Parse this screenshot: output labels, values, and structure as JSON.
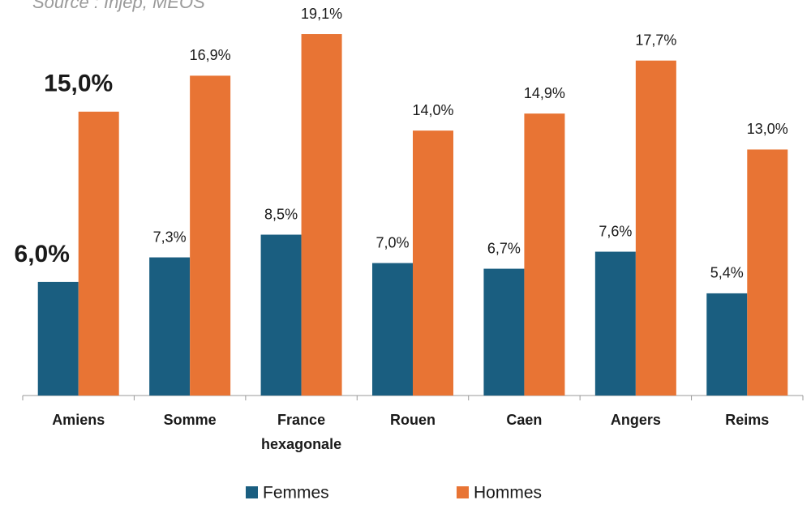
{
  "chart_data": {
    "type": "bar",
    "source": "Source : Injep, MEOS",
    "categories": [
      "Amiens",
      "Somme",
      "France hexagonale",
      "Rouen",
      "Caen",
      "Angers",
      "Reims"
    ],
    "series": [
      {
        "name": "Femmes",
        "color": "#1a5e80",
        "values": [
          6.0,
          7.3,
          8.5,
          7.0,
          6.7,
          7.6,
          5.4
        ],
        "value_labels": [
          "6,0%",
          "7,3%",
          "8,5%",
          "7,0%",
          "6,7%",
          "7,6%",
          "5,4%"
        ]
      },
      {
        "name": "Hommes",
        "color": "#e87434",
        "values": [
          15.0,
          16.9,
          19.1,
          14.0,
          14.9,
          17.7,
          13.0
        ],
        "value_labels": [
          "15,0%",
          "16,9%",
          "19,1%",
          "14,0%",
          "14,9%",
          "17,7%",
          "13,0%"
        ]
      }
    ],
    "highlight_index": 0,
    "ylim": [
      0,
      20.9
    ]
  }
}
